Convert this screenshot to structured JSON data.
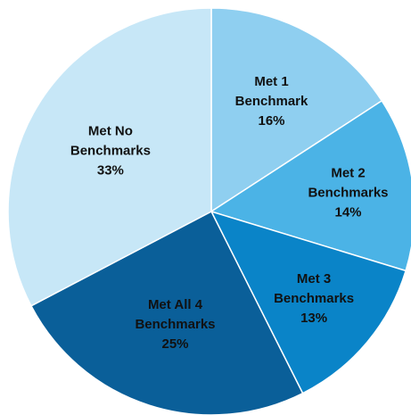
{
  "chart_data": {
    "type": "pie",
    "slices": [
      {
        "label_lines": [
          "Met 1",
          "Benchmark"
        ],
        "value": 16,
        "value_label": "16%",
        "color": "#8fcff0"
      },
      {
        "label_lines": [
          "Met 2",
          "Benchmarks"
        ],
        "value": 14,
        "value_label": "14%",
        "color": "#4bb3e6"
      },
      {
        "label_lines": [
          "Met 3",
          "Benchmarks"
        ],
        "value": 13,
        "value_label": "13%",
        "color": "#0a84c8"
      },
      {
        "label_lines": [
          "Met All 4",
          "Benchmarks"
        ],
        "value": 25,
        "value_label": "25%",
        "color": "#0a5f99"
      },
      {
        "label_lines": [
          "Met No",
          "Benchmarks"
        ],
        "value": 33,
        "value_label": "33%",
        "color": "#c7e7f7"
      }
    ],
    "start_angle_deg": 0,
    "direction": "clockwise"
  }
}
